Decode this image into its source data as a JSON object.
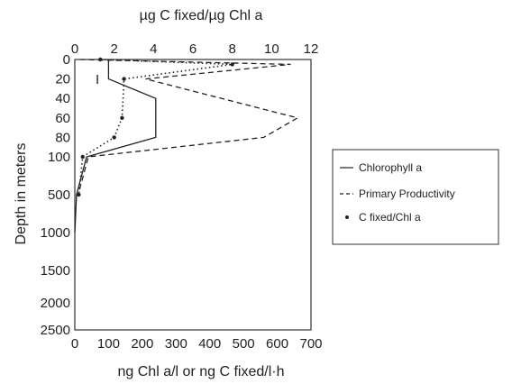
{
  "chart_data": {
    "type": "line",
    "orientation": "depth-profile",
    "top_axis_label": "µg C fixed/µg Chl a",
    "bottom_axis_label": "ng Chl a/l or ng C fixed/l·h",
    "left_axis_label": "Depth in meters",
    "top_ticks": [
      "0",
      "2",
      "4",
      "6",
      "8",
      "10",
      "12"
    ],
    "top_range": [
      0,
      12
    ],
    "bottom_ticks": [
      "0",
      "100",
      "200",
      "300",
      "400",
      "500",
      "600",
      "700"
    ],
    "bottom_range": [
      0,
      700
    ],
    "depth_ticks": [
      "0",
      "20",
      "40",
      "60",
      "80",
      "100",
      "500",
      "1000",
      "1500",
      "2000",
      "2500"
    ],
    "depth_axis_note": "non-linear depth scale; 0-100 m expanded, 500-2500 m compressed",
    "grid": false,
    "legend_position": "right",
    "series": [
      {
        "name": "Chlorophyll a",
        "style": "solid",
        "axis": "bottom",
        "points": [
          {
            "depth": 0,
            "value": 100
          },
          {
            "depth": 20,
            "value": 100
          },
          {
            "depth": 40,
            "value": 240
          },
          {
            "depth": 60,
            "value": 240
          },
          {
            "depth": 80,
            "value": 240
          },
          {
            "depth": 100,
            "value": 35
          },
          {
            "depth": 500,
            "value": 5
          },
          {
            "depth": 1000,
            "value": 0
          }
        ]
      },
      {
        "name": "Primary Productivity",
        "style": "dashed",
        "axis": "bottom",
        "points": [
          {
            "depth": 0,
            "value": 15
          },
          {
            "depth": 5,
            "value": 640
          },
          {
            "depth": 20,
            "value": 210
          },
          {
            "depth": 60,
            "value": 660
          },
          {
            "depth": 80,
            "value": 560
          },
          {
            "depth": 100,
            "value": 40
          },
          {
            "depth": 500,
            "value": 10
          }
        ]
      },
      {
        "name": "C fixed/Chl a",
        "style": "dotted",
        "axis": "top",
        "points": [
          {
            "depth": 0,
            "value": 1.3
          },
          {
            "depth": 5,
            "value": 8.0
          },
          {
            "depth": 20,
            "value": 2.5
          },
          {
            "depth": 60,
            "value": 2.4
          },
          {
            "depth": 80,
            "value": 2.0
          },
          {
            "depth": 100,
            "value": 0.4
          },
          {
            "depth": 500,
            "value": 0.2
          }
        ]
      }
    ],
    "annotations": [
      "I"
    ]
  }
}
